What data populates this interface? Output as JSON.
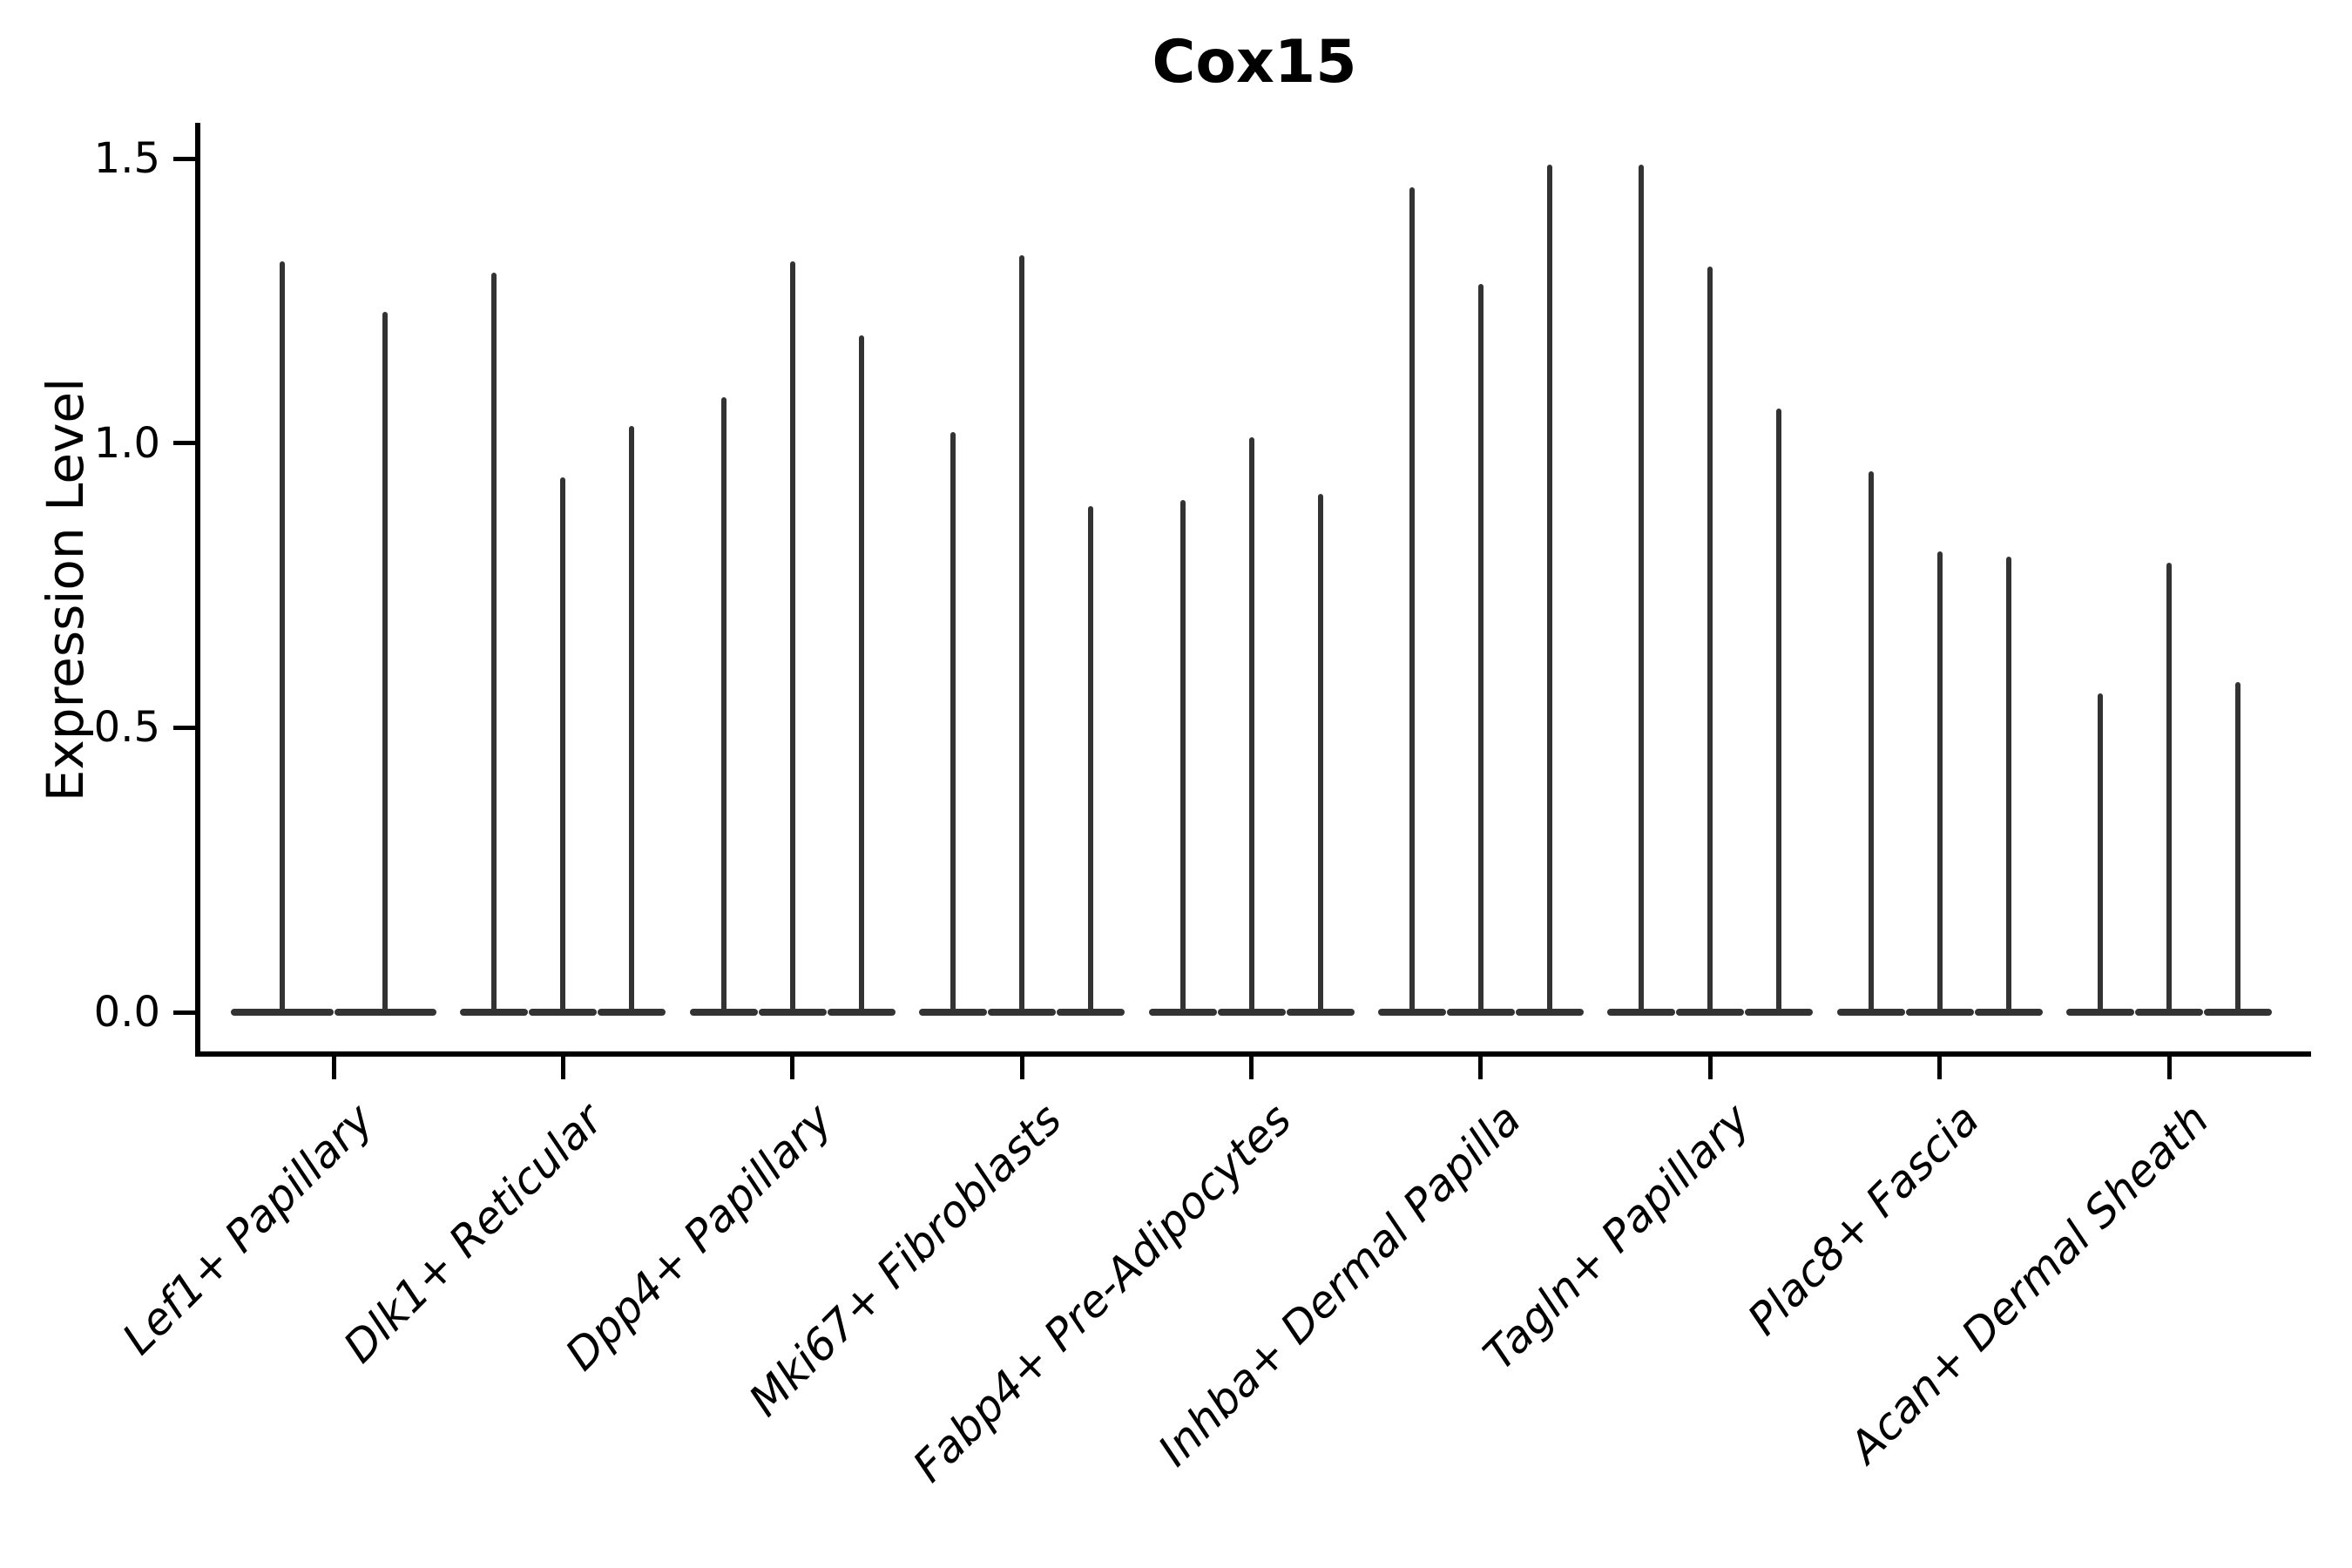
{
  "chart_data": {
    "type": "violin",
    "title": "Cox15",
    "xlabel": "",
    "ylabel": "Expression Level",
    "yticks": [
      0.0,
      0.5,
      1.0,
      1.5
    ],
    "ytick_labels": [
      "0.0",
      "0.5",
      "1.0",
      "1.5"
    ],
    "ylim": [
      -0.07,
      1.56
    ],
    "grid": false,
    "legend_position": "none",
    "violin_color": "#333333",
    "axis_color": "#000000",
    "categories": [
      "Lef1+ Papillary",
      "Dlk1+ Reticular",
      "Dpp4+ Papillary",
      "Mki67+ Fibroblasts",
      "Fabp4+ Pre-Adipocytes",
      "Inhba+ Dermal Papilla",
      "Tagln+ Papillary",
      "Plac8+ Fascia",
      "Acan+ Dermal Sheath"
    ],
    "series": [
      {
        "category": "Lef1+ Papillary",
        "violin_max_values": [
          1.32,
          1.23
        ]
      },
      {
        "category": "Dlk1+ Reticular",
        "violin_max_values": [
          1.3,
          0.94,
          1.03
        ]
      },
      {
        "category": "Dpp4+ Papillary",
        "violin_max_values": [
          1.08,
          1.32,
          1.19
        ]
      },
      {
        "category": "Mki67+ Fibroblasts",
        "violin_max_values": [
          1.02,
          1.33,
          0.89
        ]
      },
      {
        "category": "Fabp4+ Pre-Adipocytes",
        "violin_max_values": [
          0.9,
          1.01,
          0.91
        ]
      },
      {
        "category": "Inhba+ Dermal Papilla",
        "violin_max_values": [
          1.45,
          1.28,
          1.49
        ]
      },
      {
        "category": "Tagln+ Papillary",
        "violin_max_values": [
          1.49,
          1.31,
          1.06
        ]
      },
      {
        "category": "Plac8+ Fascia",
        "violin_max_values": [
          0.95,
          0.81,
          0.8
        ]
      },
      {
        "category": "Acan+ Dermal Sheath",
        "violin_max_values": [
          0.56,
          0.79,
          0.58
        ]
      }
    ],
    "baseline_value": 0.0,
    "description": "Violin plot of Cox15 expression; each group shows narrow spike-shaped violins with dense mass at 0"
  }
}
